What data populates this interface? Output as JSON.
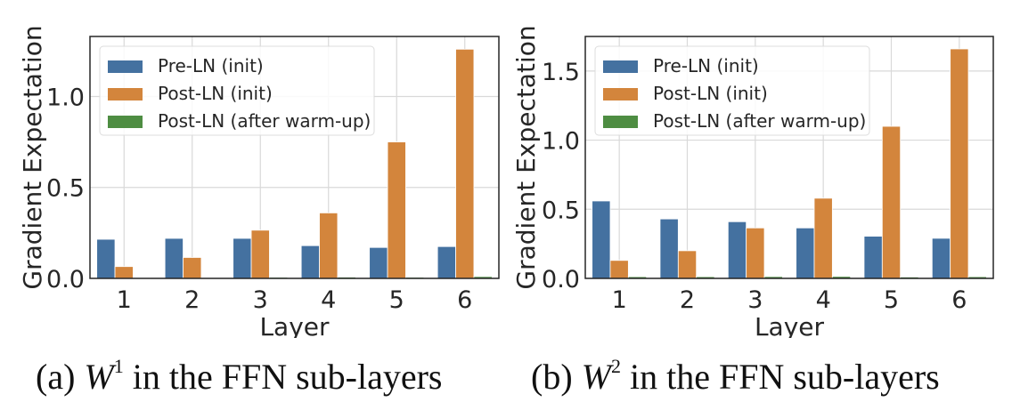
{
  "chart_data": [
    {
      "type": "bar",
      "id": "a",
      "title": "",
      "xlabel": "Layer",
      "ylabel": "Gradient Expectation",
      "categories": [
        "1",
        "2",
        "3",
        "4",
        "5",
        "6"
      ],
      "ylim": [
        0,
        1.33
      ],
      "yticks": [
        0.0,
        0.5,
        1.0
      ],
      "ytick_labels": [
        "0.0",
        "0.5",
        "1.0"
      ],
      "grid": true,
      "legend_position": "top-left",
      "series": [
        {
          "name": "Pre-LN (init)",
          "color": "#4471a0",
          "values": [
            0.215,
            0.22,
            0.22,
            0.18,
            0.17,
            0.175
          ]
        },
        {
          "name": "Post-LN (init)",
          "color": "#d3853c",
          "values": [
            0.065,
            0.115,
            0.265,
            0.36,
            0.75,
            1.26
          ]
        },
        {
          "name": "Post-LN (after warm-up)",
          "color": "#4e8d42",
          "values": [
            0.002,
            0.004,
            0.006,
            0.007,
            0.006,
            0.01
          ]
        }
      ],
      "caption": {
        "prefix": "(a) ",
        "var": "W",
        "sup": "1",
        "suffix": " in the FFN sub-layers"
      }
    },
    {
      "type": "bar",
      "id": "b",
      "title": "",
      "xlabel": "Layer",
      "ylabel": "Gradient Expectation",
      "categories": [
        "1",
        "2",
        "3",
        "4",
        "5",
        "6"
      ],
      "ylim": [
        0,
        1.75
      ],
      "yticks": [
        0.0,
        0.5,
        1.0,
        1.5
      ],
      "ytick_labels": [
        "0.0",
        "0.5",
        "1.0",
        "1.5"
      ],
      "grid": true,
      "legend_position": "top-left",
      "series": [
        {
          "name": "Pre-LN (init)",
          "color": "#4471a0",
          "values": [
            0.56,
            0.43,
            0.41,
            0.365,
            0.305,
            0.29
          ]
        },
        {
          "name": "Post-LN (init)",
          "color": "#d3853c",
          "values": [
            0.13,
            0.2,
            0.365,
            0.58,
            1.1,
            1.66
          ]
        },
        {
          "name": "Post-LN (after warm-up)",
          "color": "#4e8d42",
          "values": [
            0.012,
            0.012,
            0.013,
            0.014,
            0.01,
            0.012
          ]
        }
      ],
      "caption": {
        "prefix": "(b) ",
        "var": "W",
        "sup": "2",
        "suffix": " in the FFN sub-layers"
      }
    }
  ]
}
